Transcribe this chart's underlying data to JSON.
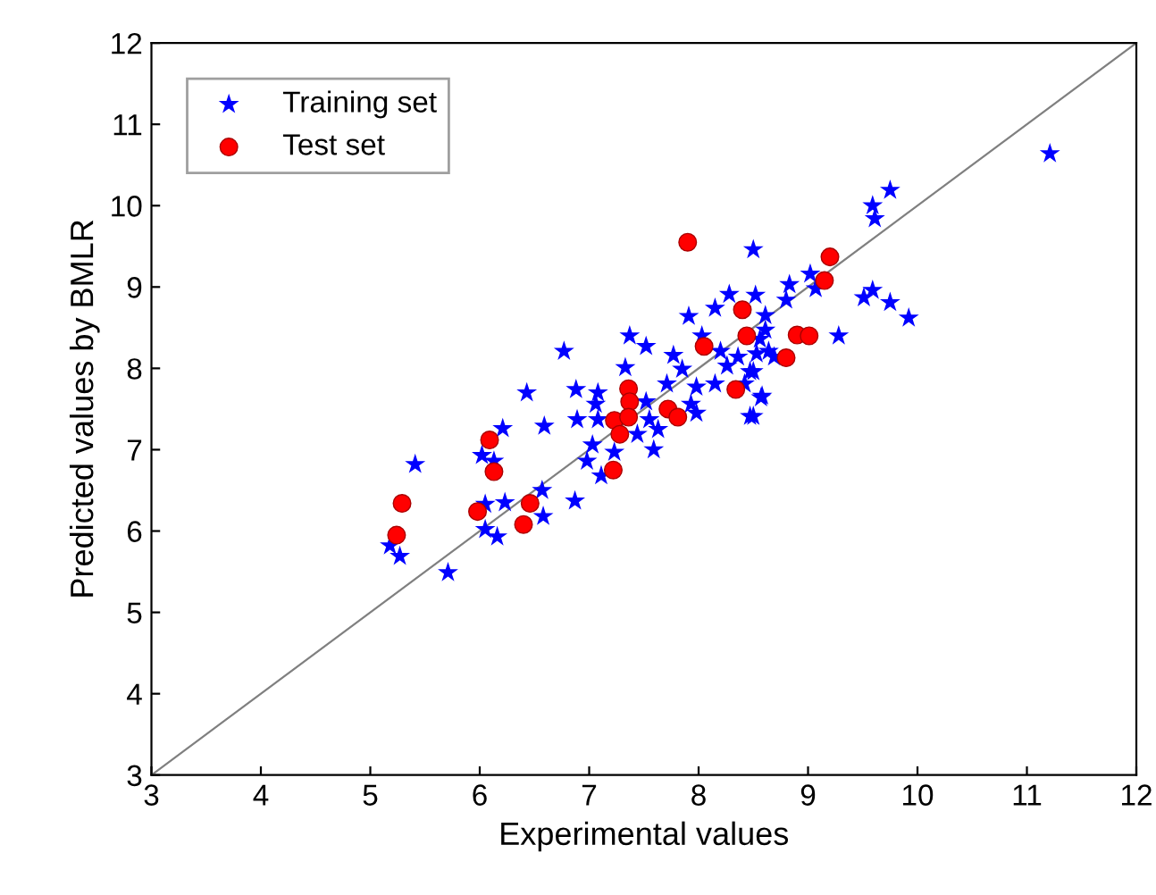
{
  "chart_data": {
    "type": "scatter",
    "xlabel": "Experimental values",
    "ylabel": "Predicted values by BMLR",
    "xlim": [
      3,
      12
    ],
    "ylim": [
      3,
      12
    ],
    "xticks": [
      3,
      4,
      5,
      6,
      7,
      8,
      9,
      10,
      11,
      12
    ],
    "yticks": [
      3,
      4,
      5,
      6,
      7,
      8,
      9,
      10,
      11,
      12
    ],
    "grid": false,
    "legend": "top left",
    "series": [
      {
        "name": "Training set",
        "color": "#0000ff",
        "marker": "star",
        "x": [
          8.5,
          7.91,
          8.15,
          8.28,
          8.52,
          7.37,
          7.52,
          6.77,
          7.77,
          8.03,
          7.33,
          7.85,
          8.2,
          8.36,
          8.56,
          7.71,
          7.98,
          8.15,
          8.47,
          8.58,
          8.47,
          6.43,
          6.88,
          7.08,
          7.06,
          6.89,
          7.08,
          6.59,
          7.52,
          7.55,
          7.44,
          7.63,
          7.93,
          7.98,
          7.03,
          6.98,
          7.23,
          7.11,
          7.59,
          6.21,
          6.02,
          6.13,
          5.41,
          6.57,
          6.23,
          6.05,
          6.87,
          6.58,
          6.05,
          6.16,
          5.18,
          5.27,
          5.71,
          8.26,
          8.64,
          8.42,
          11.21,
          9.75,
          9.59,
          9.61,
          9.02,
          9.07,
          8.83,
          8.8,
          9.51,
          9.59,
          9.75,
          9.92,
          9.28,
          8.61,
          8.61,
          8.53,
          8.69,
          8.5,
          8.57,
          8.5
        ],
        "values": [
          9.46,
          8.64,
          8.74,
          8.91,
          8.9,
          8.4,
          8.27,
          8.21,
          8.16,
          8.4,
          8.01,
          7.99,
          8.21,
          8.14,
          8.36,
          7.81,
          7.77,
          7.81,
          7.96,
          7.66,
          7.41,
          7.7,
          7.74,
          7.7,
          7.56,
          7.37,
          7.37,
          7.29,
          7.59,
          7.37,
          7.19,
          7.25,
          7.56,
          7.45,
          7.06,
          6.86,
          6.97,
          6.68,
          7.0,
          7.26,
          6.93,
          6.86,
          6.82,
          6.5,
          6.35,
          6.33,
          6.37,
          6.18,
          6.02,
          5.93,
          5.82,
          5.69,
          5.49,
          8.03,
          8.21,
          7.81,
          10.64,
          10.19,
          10.0,
          9.84,
          9.16,
          8.98,
          9.03,
          8.84,
          8.87,
          8.96,
          8.81,
          8.62,
          8.4,
          8.65,
          8.47,
          8.18,
          8.14,
          7.96,
          7.64,
          7.41
        ]
      },
      {
        "name": "Test set",
        "color": "#ff0000",
        "marker": "circle",
        "x": [
          7.36,
          7.37,
          7.23,
          7.36,
          7.28,
          7.22,
          7.9,
          8.05,
          7.72,
          7.81,
          8.4,
          8.44,
          8.34,
          6.09,
          6.13,
          5.29,
          5.24,
          5.98,
          6.46,
          6.4,
          9.2,
          9.15,
          8.9,
          9.01,
          8.8
        ],
        "values": [
          7.75,
          7.59,
          7.36,
          7.4,
          7.19,
          6.75,
          9.55,
          8.27,
          7.5,
          7.4,
          8.72,
          8.4,
          7.74,
          7.12,
          6.73,
          6.34,
          5.95,
          6.24,
          6.34,
          6.08,
          9.37,
          9.08,
          8.41,
          8.4,
          8.13
        ]
      },
      {
        "type": "line",
        "color": "#808080",
        "x": [
          3,
          12
        ],
        "values": [
          3,
          12
        ]
      }
    ]
  }
}
